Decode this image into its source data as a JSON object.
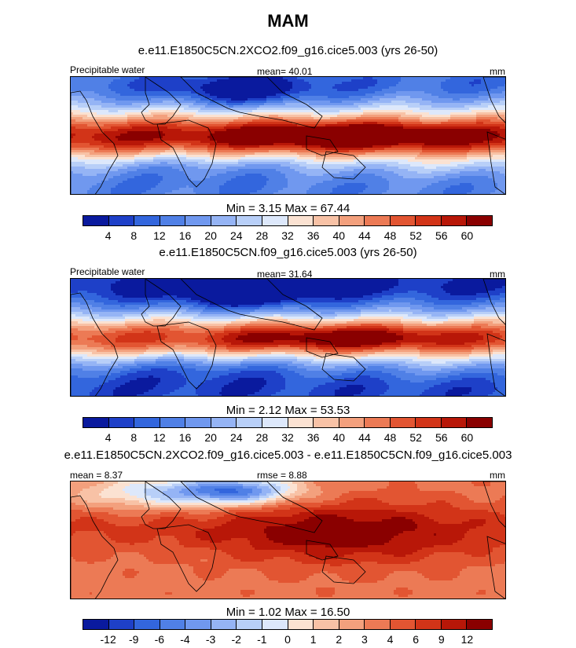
{
  "title": "MAM",
  "panels": [
    {
      "subtitle": "e.e11.E1850C5CN.2XCO2.f09_g16.cice5.003 (yrs 26-50)",
      "left_label": "Precipitable water",
      "center_label": "mean=  40.01",
      "right_label": "mm",
      "minmax": "Min =   3.15 Max =  67.44",
      "field": "warm_wet",
      "colorbar": {
        "colors": [
          "#0a1a9e",
          "#1e40c8",
          "#3366dd",
          "#5080e6",
          "#7098ef",
          "#95b4f5",
          "#b8cff8",
          "#dde8fb",
          "#fbe2d2",
          "#f8c2a6",
          "#f3a07d",
          "#ec7a55",
          "#e25532",
          "#d23418",
          "#b81708",
          "#8a0000"
        ],
        "ticks": [
          "4",
          "8",
          "12",
          "16",
          "20",
          "24",
          "28",
          "32",
          "36",
          "40",
          "44",
          "48",
          "52",
          "56",
          "60"
        ]
      }
    },
    {
      "subtitle": "e.e11.E1850C5CN.f09_g16.cice5.003 (yrs 26-50)",
      "left_label": "Precipitable water",
      "center_label": "mean=  31.64",
      "right_label": "mm",
      "minmax": "Min =   2.12 Max =  53.53",
      "field": "control",
      "colorbar": {
        "colors": [
          "#0a1a9e",
          "#1e40c8",
          "#3366dd",
          "#5080e6",
          "#7098ef",
          "#95b4f5",
          "#b8cff8",
          "#dde8fb",
          "#fbe2d2",
          "#f8c2a6",
          "#f3a07d",
          "#ec7a55",
          "#e25532",
          "#d23418",
          "#b81708",
          "#8a0000"
        ],
        "ticks": [
          "4",
          "8",
          "12",
          "16",
          "20",
          "24",
          "28",
          "32",
          "36",
          "40",
          "44",
          "48",
          "52",
          "56",
          "60"
        ]
      }
    },
    {
      "subtitle": "e.e11.E1850C5CN.2XCO2.f09_g16.cice5.003 - e.e11.E1850C5CN.f09_g16.cice5.003",
      "left_label": "mean =   8.37",
      "center_label": "rmse =   8.88",
      "right_label": "mm",
      "minmax": "Min =   1.02 Max =  16.50",
      "field": "difference",
      "colorbar": {
        "colors": [
          "#0a1a9e",
          "#1e40c8",
          "#3366dd",
          "#5080e6",
          "#7098ef",
          "#95b4f5",
          "#b8cff8",
          "#dde8fb",
          "#fbe2d2",
          "#f8c2a6",
          "#f3a07d",
          "#ec7a55",
          "#e25532",
          "#d23418",
          "#b81708",
          "#8a0000"
        ],
        "ticks": [
          "-12",
          "-9",
          "-6",
          "-4",
          "-3",
          "-2",
          "-1",
          "0",
          "1",
          "2",
          "3",
          "4",
          "6",
          "9",
          "12"
        ]
      }
    }
  ]
}
